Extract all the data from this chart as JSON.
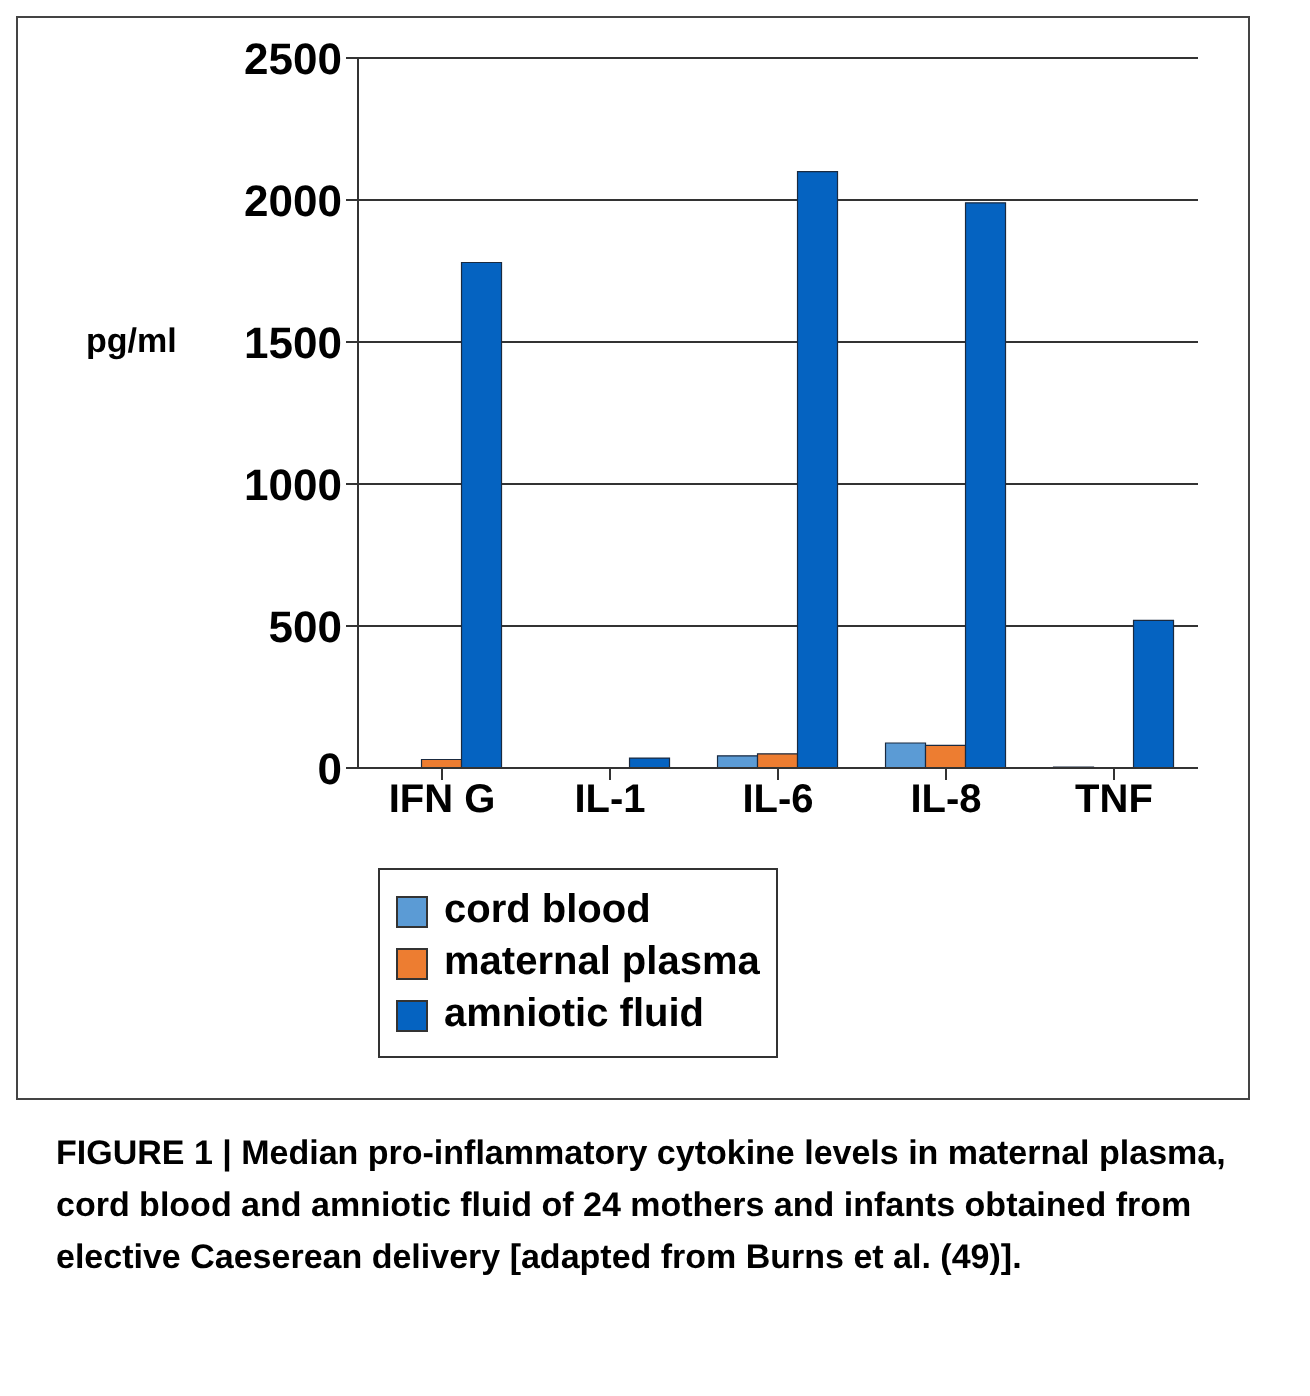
{
  "chart_data": {
    "type": "bar",
    "ylabel": "pg/ml",
    "categories": [
      "IFN G",
      "IL-1",
      "IL-6",
      "IL-8",
      "TNF"
    ],
    "series": [
      {
        "name": "cord blood",
        "color": "#5b9bd5",
        "values": [
          null,
          null,
          43,
          88,
          3
        ]
      },
      {
        "name": "maternal plasma",
        "color": "#ed7d31",
        "values": [
          30,
          null,
          50,
          80,
          null
        ]
      },
      {
        "name": "amniotic fluid",
        "color": "#0563c1",
        "values": [
          1780,
          35,
          2100,
          1990,
          520
        ]
      }
    ],
    "ylim": [
      0,
      2500
    ],
    "yticks": [
      0,
      500,
      1000,
      1500,
      2000,
      2500
    ],
    "grid": "y",
    "legend": "bottom",
    "annotations": [
      "FIGURE 1 | Median pro-inflammatory cytokine levels in maternal plasma, cord blood and amniotic fluid of 24 mothers and infants obtained from elective Caeserean delivery [adapted from Burns et al. (49)]."
    ]
  }
}
